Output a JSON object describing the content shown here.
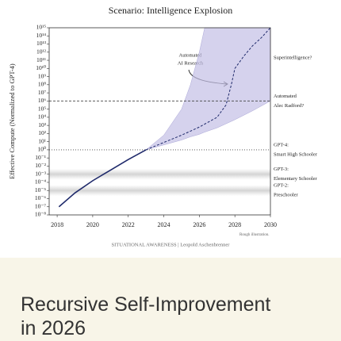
{
  "chart_data": {
    "type": "line",
    "title": "Scenario: Intelligence Explosion",
    "y_label": "Effective Compute (Normalized to GPT-4)",
    "yscale": "log",
    "xlim": [
      2017.55,
      2030
    ],
    "ylim": [
      1e-08,
      1000000000000000.0
    ],
    "xticks": [
      2018,
      2020,
      2022,
      2024,
      2026,
      2028,
      2030
    ],
    "yticks": [
      {
        "value": 1000000000000000.0,
        "label": "10¹⁵"
      },
      {
        "value": 100000000000000.0,
        "label": "10¹⁴"
      },
      {
        "value": 10000000000000.0,
        "label": "10¹³"
      },
      {
        "value": 1000000000000.0,
        "label": "10¹²"
      },
      {
        "value": 100000000000.0,
        "label": "10¹¹"
      },
      {
        "value": 10000000000.0,
        "label": "10¹⁰"
      },
      {
        "value": 1000000000.0,
        "label": "10⁹"
      },
      {
        "value": 100000000.0,
        "label": "10⁸"
      },
      {
        "value": 10000000.0,
        "label": "10⁷"
      },
      {
        "value": 1000000.0,
        "label": "10⁶"
      },
      {
        "value": 100000.0,
        "label": "10⁵"
      },
      {
        "value": 10000.0,
        "label": "10⁴"
      },
      {
        "value": 1000.0,
        "label": "10³"
      },
      {
        "value": 100.0,
        "label": "10²"
      },
      {
        "value": 10.0,
        "label": "10¹"
      },
      {
        "value": 1,
        "label": "10⁰"
      },
      {
        "value": 0.1,
        "label": "10⁻¹"
      },
      {
        "value": 0.01,
        "label": "10⁻²"
      },
      {
        "value": 0.001,
        "label": "10⁻³"
      },
      {
        "value": 0.0001,
        "label": "10⁻⁴"
      },
      {
        "value": 1e-05,
        "label": "10⁻⁵"
      },
      {
        "value": 1e-06,
        "label": "10⁻⁶"
      },
      {
        "value": 1e-07,
        "label": "10⁻⁷"
      },
      {
        "value": 1e-08,
        "label": "10⁻⁸"
      }
    ],
    "band": {
      "color": "#c3bfe6",
      "x": [
        2023,
        2024,
        2025,
        2025.5,
        2026,
        2026.3,
        2027,
        2028,
        2029,
        2030
      ],
      "upper": [
        1,
        63,
        100000.0,
        100000000.0,
        1000000000000.0,
        1000000000000000.0,
        1000000000000000.0,
        1000000000000000.0,
        1000000000000000.0,
        1000000000000000.0
      ],
      "lower": [
        1,
        4,
        16,
        40,
        80,
        150,
        500,
        5000,
        63000,
        1000000.0
      ]
    },
    "series": [
      {
        "color": "#1f2a6b",
        "dashed": false,
        "x": [
          2018.1,
          2019,
          2020,
          2021,
          2022,
          2023
        ],
        "values": [
          1e-07,
          5e-06,
          0.00016,
          0.0032,
          0.063,
          1
        ]
      },
      {
        "color": "#1f2a6b",
        "dashed": true,
        "x": [
          2023,
          2024,
          2025,
          2026,
          2027,
          2027.5,
          2027.8,
          2028,
          2028.5,
          2029,
          2029.5,
          2030
        ],
        "values": [
          1,
          8,
          63,
          630,
          10000,
          320000,
          100000000.0,
          10000000000.0,
          320000000000.0,
          6300000000000.0,
          63000000000000.0,
          1000000000000000.0
        ]
      }
    ],
    "levels": [
      {
        "value": 200000000000.0,
        "style": "none",
        "label": [
          "Superintelligence?"
        ]
      },
      {
        "value": 1000000.0,
        "style": "dashed",
        "label": [
          "Automated",
          "Alec Radford?"
        ]
      },
      {
        "value": 1,
        "style": "dotted",
        "label": [
          "GPT-4:",
          "Smart High Schooler"
        ]
      },
      {
        "value": 0.001,
        "style": "shade",
        "label": [
          "GPT-3:",
          "Elementary Schooler"
        ]
      },
      {
        "value": 1e-05,
        "style": "shade",
        "label": [
          "GPT-2:",
          "Preschooler"
        ]
      }
    ],
    "annotation": [
      "Automated",
      "AI Research"
    ],
    "note": "Rough illustration.",
    "source": "SITUATIONAL AWARENESS | Leopold Aschenbrenner"
  },
  "caption": "Recursive Self-Improvement in 2026"
}
